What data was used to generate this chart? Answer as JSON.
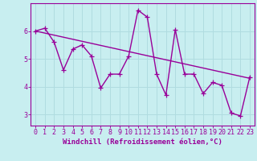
{
  "xlabel": "Windchill (Refroidissement éolien,°C)",
  "background_color": "#c8eef0",
  "grid_color": "#b0dce0",
  "line_color": "#990099",
  "x_ticks": [
    0,
    1,
    2,
    3,
    4,
    5,
    6,
    7,
    8,
    9,
    10,
    11,
    12,
    13,
    14,
    15,
    16,
    17,
    18,
    19,
    20,
    21,
    22,
    23
  ],
  "y_ticks": [
    3,
    4,
    5,
    6
  ],
  "ylim": [
    2.6,
    7.0
  ],
  "xlim": [
    -0.5,
    23.5
  ],
  "data_x": [
    0,
    1,
    2,
    3,
    4,
    5,
    6,
    7,
    8,
    9,
    10,
    11,
    12,
    13,
    14,
    15,
    16,
    17,
    18,
    19,
    20,
    21,
    22,
    23
  ],
  "data_y": [
    6.0,
    6.1,
    5.6,
    4.6,
    5.35,
    5.5,
    5.1,
    3.95,
    4.45,
    4.45,
    5.1,
    6.75,
    6.5,
    4.45,
    3.7,
    6.05,
    4.45,
    4.45,
    3.75,
    4.15,
    4.05,
    3.05,
    2.95,
    4.35
  ],
  "trend_x": [
    0,
    23
  ],
  "trend_y": [
    6.0,
    4.3
  ],
  "marker": "+",
  "marker_size": 4,
  "line_width": 1.0,
  "font_size_xlabel": 6.5,
  "font_size_ticks": 6
}
